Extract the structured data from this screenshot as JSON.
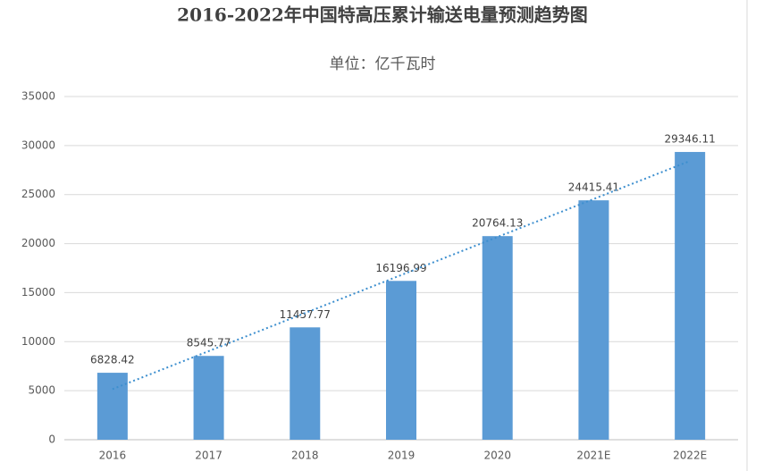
{
  "chart_data": {
    "type": "bar",
    "title": "2016-2022年中国特高压累计输送电量预测趋势图",
    "subtitle": "单位：亿千瓦时",
    "categories": [
      "2016",
      "2017",
      "2018",
      "2019",
      "2020",
      "2021E",
      "2022E"
    ],
    "values": [
      6828.42,
      8545.77,
      11457.77,
      16196.99,
      20764.13,
      24415.41,
      29346.11
    ],
    "color": "#5b9bd5",
    "ylim": [
      0,
      35000
    ],
    "yticks": [
      0,
      5000,
      10000,
      15000,
      20000,
      25000,
      30000,
      35000
    ],
    "grid": true,
    "trendline": true,
    "trendline_color": "#3d8fcf"
  }
}
